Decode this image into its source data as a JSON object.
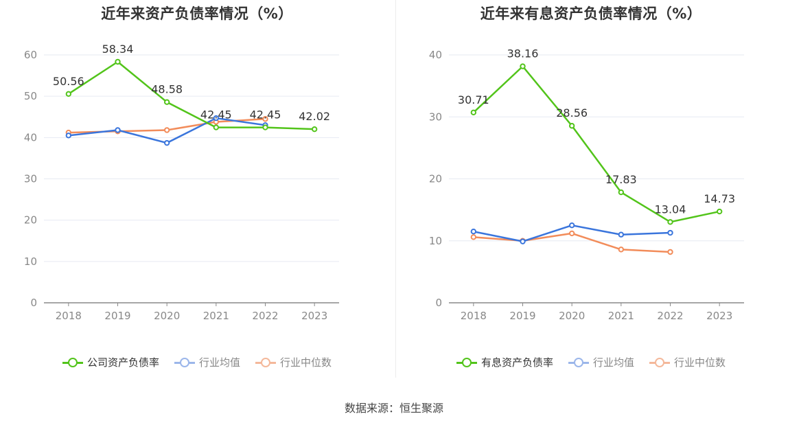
{
  "chart_data": [
    {
      "type": "line",
      "title": "近年来资产负债率情况（%）",
      "categories": [
        "2018",
        "2019",
        "2020",
        "2021",
        "2022",
        "2023"
      ],
      "ylim": [
        0,
        60
      ],
      "yticks": [
        0,
        10,
        20,
        30,
        40,
        50,
        60
      ],
      "grid": true,
      "legend_position": "bottom",
      "series": [
        {
          "name": "公司资产负债率",
          "color": "#52c41a",
          "values": [
            50.56,
            58.34,
            48.58,
            42.45,
            42.45,
            42.02
          ],
          "labels": [
            "50.56",
            "58.34",
            "48.58",
            "42.45",
            "42.45",
            "42.02"
          ]
        },
        {
          "name": "行业均值",
          "color": "#3a75dc",
          "values": [
            40.5,
            41.8,
            38.7,
            44.7,
            43.0,
            null
          ]
        },
        {
          "name": "行业中位数",
          "color": "#f28c5a",
          "values": [
            41.2,
            41.5,
            41.8,
            43.8,
            44.5,
            null
          ]
        }
      ]
    },
    {
      "type": "line",
      "title": "近年来有息资产负债率情况（%）",
      "categories": [
        "2018",
        "2019",
        "2020",
        "2021",
        "2022",
        "2023"
      ],
      "ylim": [
        0,
        40
      ],
      "yticks": [
        0,
        10,
        20,
        30,
        40
      ],
      "grid": true,
      "legend_position": "bottom",
      "series": [
        {
          "name": "有息资产负债率",
          "color": "#52c41a",
          "values": [
            30.71,
            38.16,
            28.56,
            17.83,
            13.04,
            14.73
          ],
          "labels": [
            "30.71",
            "38.16",
            "28.56",
            "17.83",
            "13.04",
            "14.73"
          ]
        },
        {
          "name": "行业均值",
          "color": "#3a75dc",
          "values": [
            11.5,
            9.9,
            12.5,
            11.0,
            11.3,
            null
          ]
        },
        {
          "name": "行业中位数",
          "color": "#f28c5a",
          "values": [
            10.6,
            10.0,
            11.2,
            8.6,
            8.2,
            null
          ]
        }
      ]
    }
  ],
  "source": "数据来源：恒生聚源"
}
